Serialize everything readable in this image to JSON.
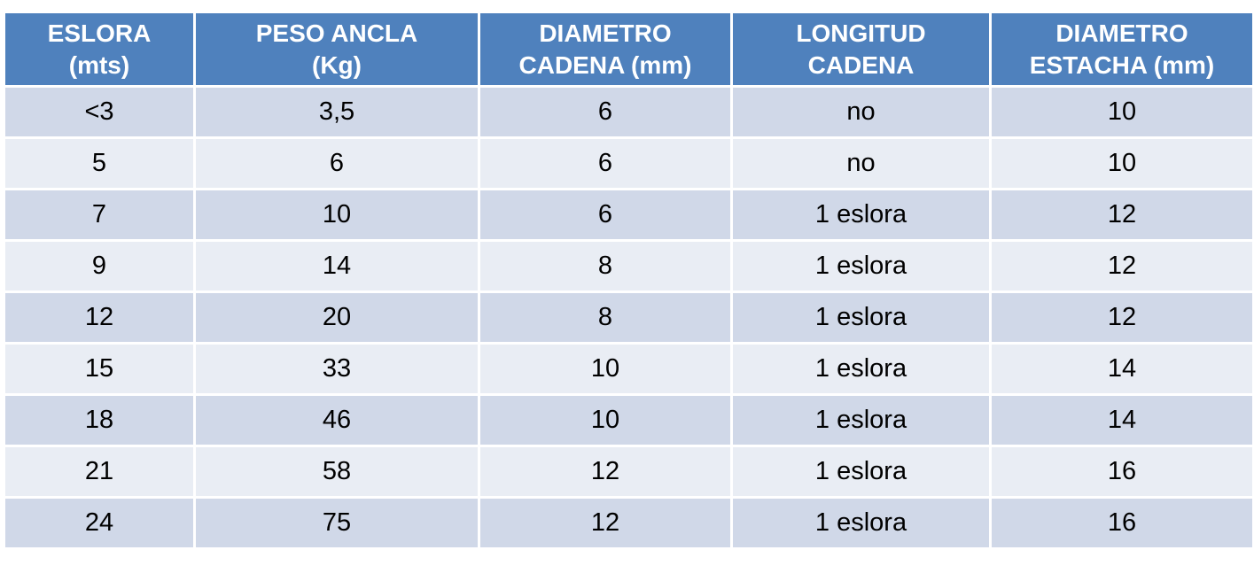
{
  "table": {
    "header": [
      "ESLORA\n(mts)",
      "PESO ANCLA\n(Kg)",
      "DIAMETRO\nCADENA (mm)",
      "LONGITUD\nCADENA",
      "DIAMETRO\nESTACHA (mm)"
    ],
    "rows": [
      [
        "<3",
        "3,5",
        "6",
        "no",
        "10"
      ],
      [
        "5",
        "6",
        "6",
        "no",
        "10"
      ],
      [
        "7",
        "10",
        "6",
        "1 eslora",
        "12"
      ],
      [
        "9",
        "14",
        "8",
        "1 eslora",
        "12"
      ],
      [
        "12",
        "20",
        "8",
        "1 eslora",
        "12"
      ],
      [
        "15",
        "33",
        "10",
        "1 eslora",
        "14"
      ],
      [
        "18",
        "46",
        "10",
        "1 eslora",
        "14"
      ],
      [
        "21",
        "58",
        "12",
        "1 eslora",
        "16"
      ],
      [
        "24",
        "75",
        "12",
        "1 eslora",
        "16"
      ]
    ]
  }
}
